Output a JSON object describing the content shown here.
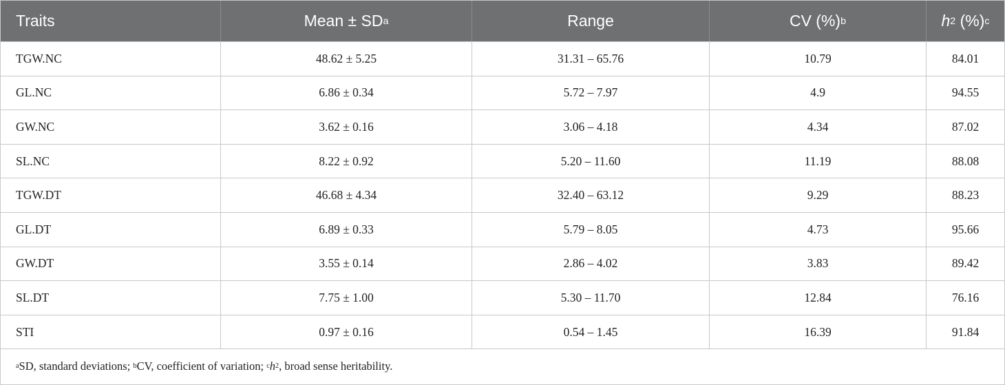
{
  "table": {
    "header": [
      [
        {
          "t": "Traits"
        }
      ],
      [
        {
          "t": "Mean ± SD"
        },
        {
          "sup": "a"
        }
      ],
      [
        {
          "t": "Range"
        }
      ],
      [
        {
          "t": "CV (%)"
        },
        {
          "sup": "b"
        }
      ],
      [
        {
          "i": "h"
        },
        {
          "sup": "2"
        },
        {
          "t": " (%)"
        },
        {
          "sup": "c"
        }
      ]
    ],
    "rows": [
      [
        "TGW.NC",
        "48.62 ± 5.25",
        "31.31 – 65.76",
        "10.79",
        "84.01"
      ],
      [
        "GL.NC",
        "6.86 ± 0.34",
        "5.72 – 7.97",
        "4.9",
        "94.55"
      ],
      [
        "GW.NC",
        "3.62 ± 0.16",
        "3.06 – 4.18",
        "4.34",
        "87.02"
      ],
      [
        "SL.NC",
        "8.22 ± 0.92",
        "5.20 – 11.60",
        "11.19",
        "88.08"
      ],
      [
        "TGW.DT",
        "46.68 ± 4.34",
        "32.40 – 63.12",
        "9.29",
        "88.23"
      ],
      [
        "GL.DT",
        "6.89 ± 0.33",
        "5.79 – 8.05",
        "4.73",
        "95.66"
      ],
      [
        "GW.DT",
        "3.55 ± 0.14",
        "2.86 – 4.02",
        "3.83",
        "89.42"
      ],
      [
        "SL.DT",
        "7.75 ± 1.00",
        "5.30 – 11.70",
        "12.84",
        "76.16"
      ],
      [
        "STI",
        "0.97 ± 0.16",
        "0.54 – 1.45",
        "16.39",
        "91.84"
      ]
    ],
    "footnote": [
      {
        "sup": "a"
      },
      {
        "t": "SD, standard deviations; "
      },
      {
        "sup": "b"
      },
      {
        "t": "CV, coefficient of variation; "
      },
      {
        "sup": "c"
      },
      {
        "i": "h"
      },
      {
        "sup": "2"
      },
      {
        "t": ", broad sense heritability."
      }
    ]
  }
}
